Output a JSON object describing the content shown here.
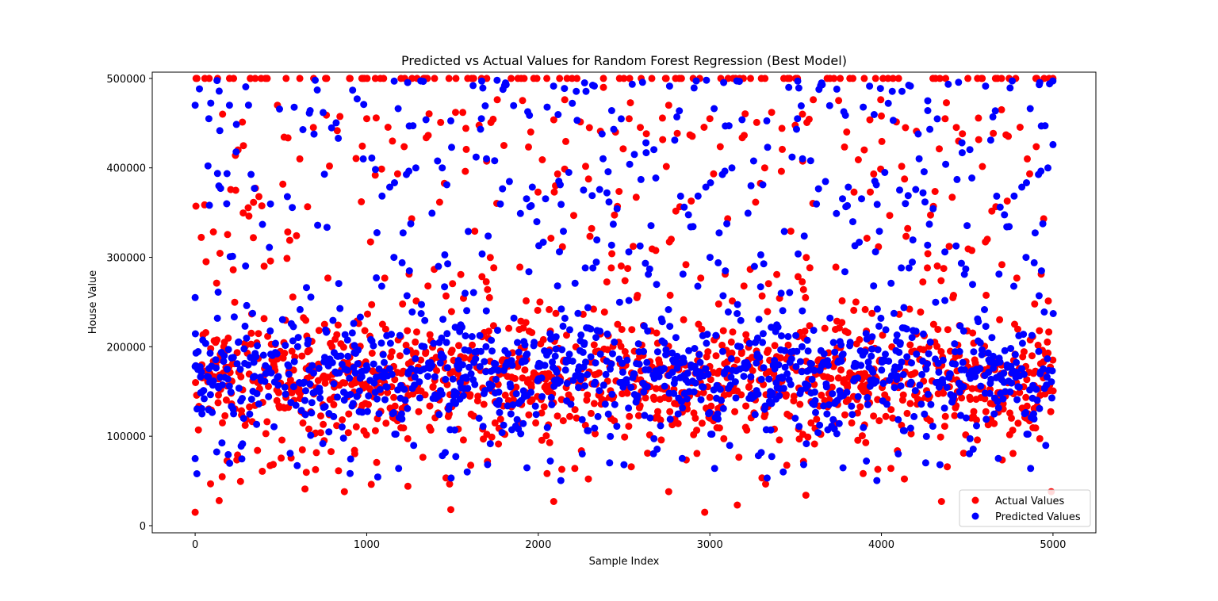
{
  "chart_data": {
    "type": "scatter",
    "title": "Predicted vs Actual Values for Random Forest Regression (Best Model)",
    "xlabel": "Sample Index",
    "ylabel": "House Value",
    "xlim": [
      -250,
      5250
    ],
    "ylim": [
      -8000,
      507000
    ],
    "xticks": [
      0,
      1000,
      2000,
      3000,
      4000,
      5000
    ],
    "yticks": [
      0,
      100000,
      200000,
      300000,
      400000,
      500000
    ],
    "grid": false,
    "legend_position": "lower-right",
    "n_samples": 5000,
    "series": [
      {
        "name": "Actual Values",
        "color": "#ff0000",
        "distribution": "dense band 50000-300000, sparser 300000-480000, capped row at 500000",
        "points": [
          [
            0,
            15000
          ],
          [
            5,
            500000
          ],
          [
            140,
            28000
          ],
          [
            870,
            38000
          ],
          [
            1490,
            18000
          ],
          [
            2090,
            27000
          ],
          [
            2970,
            15000
          ],
          [
            3160,
            23000
          ],
          [
            3560,
            34000
          ],
          [
            4350,
            27000
          ],
          [
            2760,
            38000
          ],
          [
            1240,
            44000
          ],
          [
            640,
            41000
          ],
          [
            4990,
            38000
          ],
          [
            200,
            500000
          ],
          [
            350,
            500000
          ],
          [
            420,
            500000
          ],
          [
            530,
            500000
          ],
          [
            610,
            500000
          ],
          [
            760,
            500000
          ],
          [
            900,
            500000
          ],
          [
            1050,
            500000
          ],
          [
            1200,
            500000
          ],
          [
            1340,
            500000
          ],
          [
            1520,
            500000
          ],
          [
            1700,
            500000
          ],
          [
            1900,
            500000
          ],
          [
            2050,
            500000
          ],
          [
            2380,
            500000
          ],
          [
            2600,
            500000
          ],
          [
            2800,
            500000
          ],
          [
            3150,
            500000
          ],
          [
            3300,
            500000
          ],
          [
            3500,
            500000
          ],
          [
            3700,
            500000
          ],
          [
            3900,
            500000
          ],
          [
            4100,
            500000
          ],
          [
            4300,
            500000
          ],
          [
            4560,
            500000
          ],
          [
            4700,
            500000
          ],
          [
            4900,
            500000
          ],
          [
            5000,
            500000
          ],
          [
            160,
            460000
          ],
          [
            480,
            470000
          ],
          [
            1000,
            455000
          ],
          [
            1560,
            462000
          ],
          [
            2380,
            490000
          ],
          [
            2760,
            470000
          ],
          [
            3000,
            455000
          ],
          [
            3540,
            460000
          ],
          [
            4000,
            458000
          ],
          [
            4700,
            465000
          ],
          [
            250,
            420000
          ],
          [
            610,
            410000
          ],
          [
            1150,
            430000
          ],
          [
            1800,
            425000
          ],
          [
            2450,
            440000
          ],
          [
            3320,
            400000
          ],
          [
            3900,
            420000
          ],
          [
            4450,
            430000
          ],
          [
            4850,
            410000
          ],
          [
            2100,
            380000
          ]
        ]
      },
      {
        "name": "Predicted Values",
        "color": "#0000ff",
        "distribution": "dense band 55000-280000, sparser above, max about 498000",
        "points": [
          [
            0,
            470000
          ],
          [
            80,
            455000
          ],
          [
            200,
            470000
          ],
          [
            700,
            498000
          ],
          [
            1160,
            497000
          ],
          [
            1620,
            492000
          ],
          [
            1760,
            498000
          ],
          [
            2270,
            495000
          ],
          [
            2980,
            498000
          ],
          [
            3460,
            490000
          ],
          [
            3740,
            488000
          ],
          [
            4270,
            475000
          ],
          [
            4920,
            493000
          ],
          [
            4980,
            494000
          ],
          [
            5000,
            426000
          ],
          [
            0,
            255000
          ],
          [
            0,
            178000
          ],
          [
            0,
            75000
          ],
          [
            10,
            58000
          ],
          [
            40,
            125000
          ],
          [
            980,
            410000
          ],
          [
            1440,
            400000
          ],
          [
            2560,
            415000
          ],
          [
            3240,
            380000
          ],
          [
            4140,
            360000
          ]
        ]
      }
    ]
  }
}
